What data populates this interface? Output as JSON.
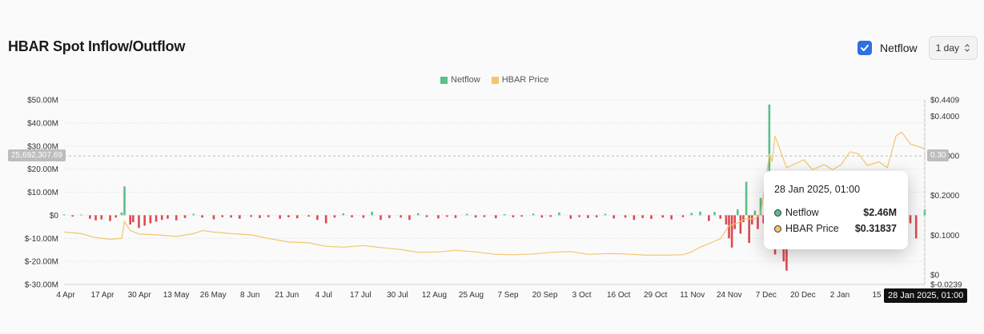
{
  "title": "HBAR Spot Inflow/Outflow",
  "controls": {
    "netflow_label": "Netflow",
    "interval_value": "1 day"
  },
  "colors": {
    "inflow": "#5bbf8a",
    "outflow": "#e0484f",
    "price": "#f2c66d",
    "accent": "#2f6fe0"
  },
  "crosshair": {
    "y_value_label": "25,692,307.69",
    "price_value_label": "0.30",
    "x_value_label": "28 Jan 2025, 01:00"
  },
  "tooltip": {
    "date": "28 Jan 2025, 01:00",
    "rows": [
      {
        "name": "Netflow",
        "value": "$2.46M",
        "dot_color": "#5bbf8a"
      },
      {
        "name": "HBAR Price",
        "value": "$0.31837",
        "dot_color": "#f2c66d"
      }
    ]
  },
  "chart_data": {
    "type": "bar",
    "title": "HBAR Spot Inflow/Outflow",
    "grid": true,
    "legend_placement": "top-center",
    "legend": [
      "Netflow",
      "HBAR Price"
    ],
    "x_tick_labels": [
      "4 Apr",
      "17 Apr",
      "30 Apr",
      "13 May",
      "26 May",
      "8 Jun",
      "21 Jun",
      "4 Jul",
      "17 Jul",
      "30 Jul",
      "12 Aug",
      "25 Aug",
      "7 Sep",
      "20 Sep",
      "3 Oct",
      "16 Oct",
      "29 Oct",
      "11 Nov",
      "24 Nov",
      "7 Dec",
      "20 Dec",
      "2 Jan",
      "15"
    ],
    "left_axis": {
      "ylim": [
        -30000000,
        50000000
      ],
      "tick_labels": [
        "$50.00M",
        "$40.00M",
        "$30.00M",
        "$20.00M",
        "$10.00M",
        "$0",
        "$-10.00M",
        "$-20.00M",
        "$-30.00M"
      ],
      "tick_values": [
        50000000,
        40000000,
        30000000,
        20000000,
        10000000,
        0,
        -10000000,
        -20000000,
        -30000000
      ]
    },
    "right_axis": {
      "ylim": [
        -0.0239,
        0.4409
      ],
      "tick_labels": [
        "$0.4409",
        "$0.4000",
        "$0.3000",
        "$0.2000",
        "$0.1000",
        "$0",
        "$-0.0239"
      ],
      "tick_values": [
        0.4409,
        0.4,
        0.3,
        0.2,
        0.1,
        0,
        -0.0239
      ]
    },
    "series": [
      {
        "name": "Netflow",
        "type": "bar",
        "points": [
          [
            "4 Apr",
            0.4
          ],
          [
            "7 Apr",
            -0.6
          ],
          [
            "10 Apr",
            0.3
          ],
          [
            "13 Apr",
            -1.5
          ],
          [
            "15 Apr",
            -2.2
          ],
          [
            "17 Apr",
            -1.8
          ],
          [
            "20 Apr",
            -2.5
          ],
          [
            "22 Apr",
            -1.0
          ],
          [
            "24 Apr",
            1.2
          ],
          [
            "25 Apr",
            12.5
          ],
          [
            "27 Apr",
            -4.0
          ],
          [
            "28 Apr",
            -3.0
          ],
          [
            "30 Apr",
            -5.5
          ],
          [
            "2 May",
            -4.5
          ],
          [
            "4 May",
            -3.5
          ],
          [
            "6 May",
            -2.8
          ],
          [
            "8 May",
            -2.0
          ],
          [
            "10 May",
            -1.5
          ],
          [
            "13 May",
            -2.2
          ],
          [
            "16 May",
            -1.2
          ],
          [
            "19 May",
            0.6
          ],
          [
            "22 May",
            -1.0
          ],
          [
            "26 May",
            -1.8
          ],
          [
            "29 May",
            -0.8
          ],
          [
            "1 Jun",
            -1.0
          ],
          [
            "4 Jun",
            -1.5
          ],
          [
            "8 Jun",
            -0.7
          ],
          [
            "11 Jun",
            -1.2
          ],
          [
            "14 Jun",
            -0.8
          ],
          [
            "18 Jun",
            -1.5
          ],
          [
            "21 Jun",
            -0.9
          ],
          [
            "24 Jun",
            -1.3
          ],
          [
            "28 Jun",
            -0.6
          ],
          [
            "1 Jul",
            -2.0
          ],
          [
            "4 Jul",
            -3.5
          ],
          [
            "7 Jul",
            -1.0
          ],
          [
            "10 Jul",
            0.8
          ],
          [
            "13 Jul",
            -0.9
          ],
          [
            "17 Jul",
            -1.1
          ],
          [
            "20 Jul",
            1.5
          ],
          [
            "23 Jul",
            -2.0
          ],
          [
            "26 Jul",
            -1.2
          ],
          [
            "30 Jul",
            -1.0
          ],
          [
            "2 Aug",
            -2.0
          ],
          [
            "5 Aug",
            0.9
          ],
          [
            "8 Aug",
            -0.8
          ],
          [
            "12 Aug",
            -1.4
          ],
          [
            "15 Aug",
            -0.7
          ],
          [
            "18 Aug",
            -1.2
          ],
          [
            "22 Aug",
            0.6
          ],
          [
            "25 Aug",
            -1.0
          ],
          [
            "28 Aug",
            -0.8
          ],
          [
            "1 Sep",
            -1.3
          ],
          [
            "4 Sep",
            0.5
          ],
          [
            "7 Sep",
            -0.9
          ],
          [
            "10 Sep",
            -0.6
          ],
          [
            "14 Sep",
            0.7
          ],
          [
            "17 Sep",
            -1.0
          ],
          [
            "20 Sep",
            -0.7
          ],
          [
            "23 Sep",
            1.2
          ],
          [
            "27 Sep",
            -1.5
          ],
          [
            "30 Sep",
            -0.8
          ],
          [
            "3 Oct",
            -1.2
          ],
          [
            "6 Oct",
            -0.9
          ],
          [
            "9 Oct",
            0.6
          ],
          [
            "12 Oct",
            -1.4
          ],
          [
            "16 Oct",
            -1.0
          ],
          [
            "19 Oct",
            -2.0
          ],
          [
            "22 Oct",
            -1.2
          ],
          [
            "25 Oct",
            -1.6
          ],
          [
            "29 Oct",
            -1.0
          ],
          [
            "1 Nov",
            -1.8
          ],
          [
            "5 Nov",
            -0.8
          ],
          [
            "8 Nov",
            1.0
          ],
          [
            "11 Nov",
            1.6
          ],
          [
            "14 Nov",
            -2.5
          ],
          [
            "16 Nov",
            1.4
          ],
          [
            "18 Nov",
            -1.5
          ],
          [
            "20 Nov",
            -4.0
          ],
          [
            "21 Nov",
            -10.0
          ],
          [
            "22 Nov",
            -14.0
          ],
          [
            "23 Nov",
            -6.0
          ],
          [
            "24 Nov",
            2.5
          ],
          [
            "25 Nov",
            -8.0
          ],
          [
            "26 Nov",
            -3.0
          ],
          [
            "27 Nov",
            14.5
          ],
          [
            "28 Nov",
            -12.0
          ],
          [
            "29 Nov",
            -4.0
          ],
          [
            "30 Nov",
            2.0
          ],
          [
            "1 Dec",
            -6.0
          ],
          [
            "2 Dec",
            7.5
          ],
          [
            "3 Dec",
            -3.5
          ],
          [
            "4 Dec",
            13.0
          ],
          [
            "5 Dec",
            48.0
          ],
          [
            "6 Dec",
            16.0
          ],
          [
            "7 Dec",
            -17.0
          ],
          [
            "8 Dec",
            -5.0
          ],
          [
            "9 Dec",
            -8.0
          ],
          [
            "10 Dec",
            -20.0
          ],
          [
            "11 Dec",
            -24.0
          ],
          [
            "12 Dec",
            -5.0
          ],
          [
            "15 Dec",
            -3.0
          ],
          [
            "20 Dec",
            -2.0
          ],
          [
            "26 Dec",
            -3.0
          ],
          [
            "2 Jan",
            -4.0
          ],
          [
            "8 Jan",
            -2.5
          ],
          [
            "15 Jan",
            -13.0
          ],
          [
            "18 Jan",
            -2.0
          ],
          [
            "20 Jan",
            -6.0
          ],
          [
            "23 Jan",
            -3.5
          ],
          [
            "25 Jan",
            -10.0
          ],
          [
            "28 Jan",
            2.46
          ]
        ],
        "unit": "millions USD"
      },
      {
        "name": "HBAR Price",
        "type": "line",
        "points": [
          [
            "4 Apr",
            0.108
          ],
          [
            "10 Apr",
            0.104
          ],
          [
            "15 Apr",
            0.094
          ],
          [
            "20 Apr",
            0.09
          ],
          [
            "24 Apr",
            0.092
          ],
          [
            "25 Apr",
            0.135
          ],
          [
            "27 Apr",
            0.112
          ],
          [
            "30 Apr",
            0.103
          ],
          [
            "6 May",
            0.101
          ],
          [
            "13 May",
            0.097
          ],
          [
            "19 May",
            0.104
          ],
          [
            "22 May",
            0.112
          ],
          [
            "26 May",
            0.108
          ],
          [
            "1 Jun",
            0.104
          ],
          [
            "8 Jun",
            0.101
          ],
          [
            "14 Jun",
            0.092
          ],
          [
            "21 Jun",
            0.083
          ],
          [
            "28 Jun",
            0.081
          ],
          [
            "4 Jul",
            0.072
          ],
          [
            "10 Jul",
            0.07
          ],
          [
            "17 Jul",
            0.074
          ],
          [
            "23 Jul",
            0.069
          ],
          [
            "30 Jul",
            0.064
          ],
          [
            "5 Aug",
            0.057
          ],
          [
            "12 Aug",
            0.058
          ],
          [
            "18 Aug",
            0.062
          ],
          [
            "25 Aug",
            0.058
          ],
          [
            "1 Sep",
            0.052
          ],
          [
            "7 Sep",
            0.051
          ],
          [
            "14 Sep",
            0.053
          ],
          [
            "20 Sep",
            0.057
          ],
          [
            "27 Sep",
            0.059
          ],
          [
            "3 Oct",
            0.052
          ],
          [
            "10 Oct",
            0.054
          ],
          [
            "16 Oct",
            0.053
          ],
          [
            "23 Oct",
            0.05
          ],
          [
            "29 Oct",
            0.05
          ],
          [
            "5 Nov",
            0.051
          ],
          [
            "8 Nov",
            0.058
          ],
          [
            "11 Nov",
            0.07
          ],
          [
            "14 Nov",
            0.079
          ],
          [
            "18 Nov",
            0.091
          ],
          [
            "21 Nov",
            0.124
          ],
          [
            "24 Nov",
            0.131
          ],
          [
            "27 Nov",
            0.142
          ],
          [
            "30 Nov",
            0.141
          ],
          [
            "2 Dec",
            0.155
          ],
          [
            "4 Dec",
            0.25
          ],
          [
            "5 Dec",
            0.305
          ],
          [
            "6 Dec",
            0.285
          ],
          [
            "7 Dec",
            0.35
          ],
          [
            "9 Dec",
            0.31
          ],
          [
            "11 Dec",
            0.27
          ],
          [
            "14 Dec",
            0.28
          ],
          [
            "17 Dec",
            0.29
          ],
          [
            "20 Dec",
            0.265
          ],
          [
            "24 Dec",
            0.278
          ],
          [
            "27 Dec",
            0.265
          ],
          [
            "30 Dec",
            0.278
          ],
          [
            "2 Jan",
            0.31
          ],
          [
            "5 Jan",
            0.305
          ],
          [
            "8 Jan",
            0.276
          ],
          [
            "12 Jan",
            0.285
          ],
          [
            "15 Jan",
            0.27
          ],
          [
            "18 Jan",
            0.35
          ],
          [
            "20 Jan",
            0.36
          ],
          [
            "23 Jan",
            0.33
          ],
          [
            "25 Jan",
            0.325
          ],
          [
            "27 Jan",
            0.32
          ],
          [
            "28 Jan",
            0.318
          ]
        ],
        "unit": "USD"
      }
    ]
  }
}
